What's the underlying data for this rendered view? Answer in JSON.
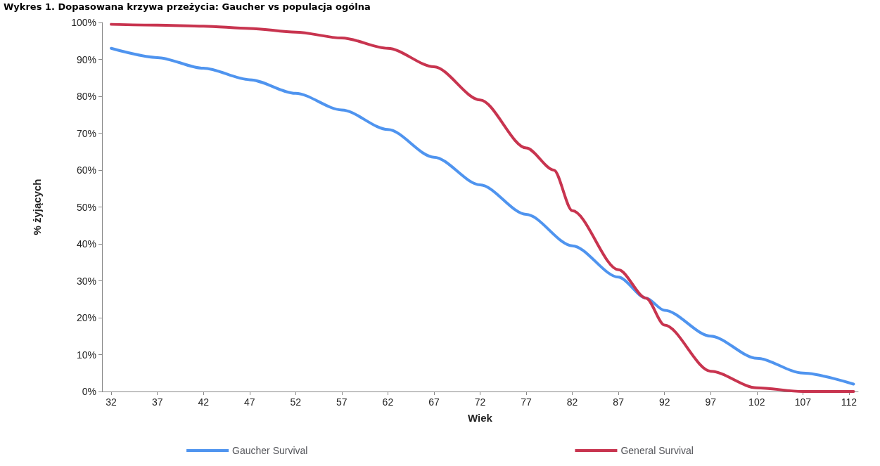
{
  "chart_data": {
    "type": "line",
    "title": "Wykres 1. Dopasowana krzywa przeżycia: Gaucher vs populacja ogólna",
    "xlabel": "Wiek",
    "ylabel": "% żyjących",
    "xlim": [
      31,
      113
    ],
    "xticks": [
      32,
      37,
      42,
      47,
      52,
      57,
      62,
      67,
      72,
      77,
      82,
      87,
      92,
      97,
      102,
      107,
      112
    ],
    "ylim": [
      0,
      100
    ],
    "yticks": [
      {
        "value": 0,
        "label": "0%"
      },
      {
        "value": 10,
        "label": "10%"
      },
      {
        "value": 20,
        "label": "20%"
      },
      {
        "value": 30,
        "label": "30%"
      },
      {
        "value": 40,
        "label": "40%"
      },
      {
        "value": 50,
        "label": "50%"
      },
      {
        "value": 60,
        "label": "60%"
      },
      {
        "value": 70,
        "label": "70%"
      },
      {
        "value": 80,
        "label": "80%"
      },
      {
        "value": 90,
        "label": "90%"
      },
      {
        "value": 100,
        "label": "100%"
      }
    ],
    "grid": false,
    "legend": "bottom",
    "marker": "none",
    "line_style": "solid",
    "series": [
      {
        "name": "Gaucher Survival",
        "color": "#4f94ef",
        "x": [
          32,
          37,
          42,
          47,
          52,
          57,
          62,
          67,
          72,
          77,
          82,
          87,
          90,
          92,
          97,
          102,
          107,
          112.5
        ],
        "values": [
          93,
          90.5,
          87.6,
          84.5,
          80.8,
          76.3,
          71,
          63.5,
          56,
          48,
          39.5,
          31,
          25.3,
          22,
          15,
          9,
          5,
          2
        ]
      },
      {
        "name": "General Survival",
        "color": "#c8344f",
        "x": [
          32,
          37,
          42,
          47,
          52,
          57,
          62,
          67,
          72,
          77,
          80,
          82,
          87,
          90,
          92,
          97,
          102,
          107,
          112.5
        ],
        "values": [
          99.5,
          99.3,
          99,
          98.4,
          97.4,
          95.8,
          93,
          88,
          79,
          66,
          60,
          49,
          33,
          25.3,
          18,
          5.5,
          1,
          0,
          0
        ]
      }
    ]
  }
}
